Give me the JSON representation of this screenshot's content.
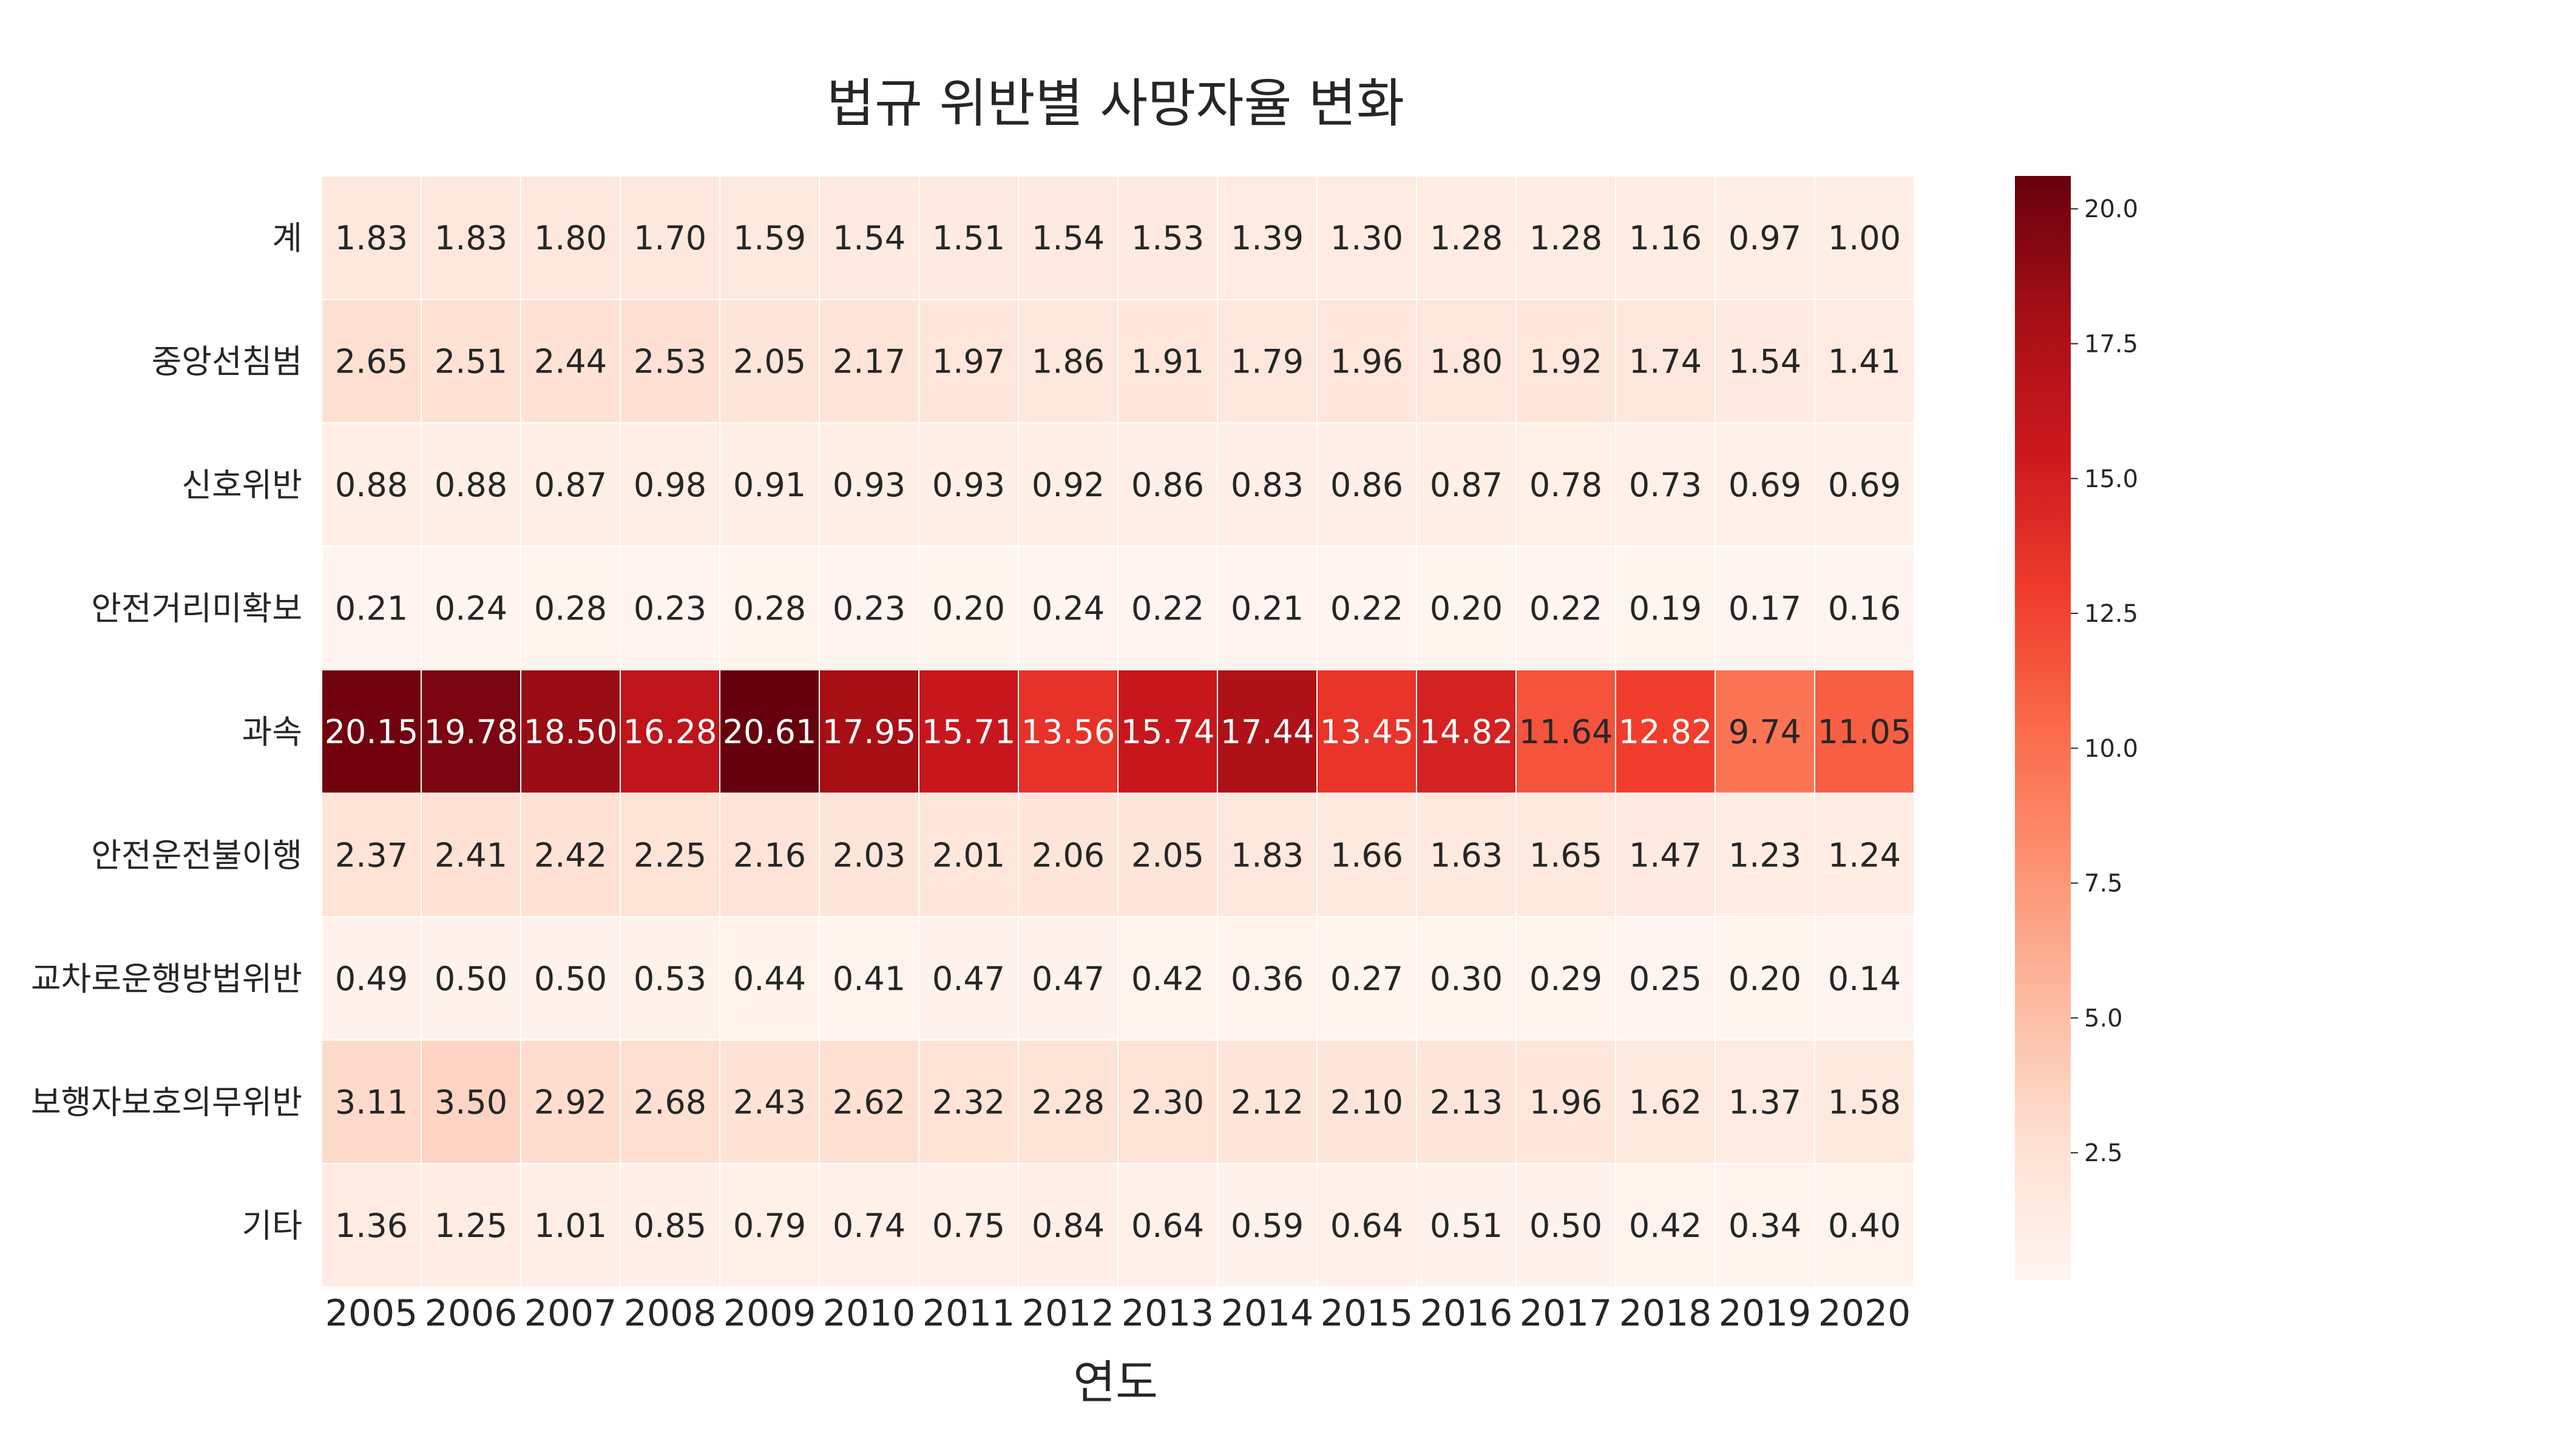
{
  "chart_data": {
    "type": "heatmap",
    "title": "법규 위반별 사망자율 변화",
    "xlabel": "연도",
    "ylabel": "",
    "columns": [
      "2005",
      "2006",
      "2007",
      "2008",
      "2009",
      "2010",
      "2011",
      "2012",
      "2013",
      "2014",
      "2015",
      "2016",
      "2017",
      "2018",
      "2019",
      "2020"
    ],
    "rows": [
      "계",
      "중앙선침범",
      "신호위반",
      "안전거리미확보",
      "과속",
      "안전운전불이행",
      "교차로운행방법위반",
      "보행자보호의무위반",
      "기타"
    ],
    "values": [
      [
        1.83,
        1.83,
        1.8,
        1.7,
        1.59,
        1.54,
        1.51,
        1.54,
        1.53,
        1.39,
        1.3,
        1.28,
        1.28,
        1.16,
        0.97,
        1.0
      ],
      [
        2.65,
        2.51,
        2.44,
        2.53,
        2.05,
        2.17,
        1.97,
        1.86,
        1.91,
        1.79,
        1.96,
        1.8,
        1.92,
        1.74,
        1.54,
        1.41
      ],
      [
        0.88,
        0.88,
        0.87,
        0.98,
        0.91,
        0.93,
        0.93,
        0.92,
        0.86,
        0.83,
        0.86,
        0.87,
        0.78,
        0.73,
        0.69,
        0.69
      ],
      [
        0.21,
        0.24,
        0.28,
        0.23,
        0.28,
        0.23,
        0.2,
        0.24,
        0.22,
        0.21,
        0.22,
        0.2,
        0.22,
        0.19,
        0.17,
        0.16
      ],
      [
        20.15,
        19.78,
        18.5,
        16.28,
        20.61,
        17.95,
        15.71,
        13.56,
        15.74,
        17.44,
        13.45,
        14.82,
        11.64,
        12.82,
        9.74,
        11.05
      ],
      [
        2.37,
        2.41,
        2.42,
        2.25,
        2.16,
        2.03,
        2.01,
        2.06,
        2.05,
        1.83,
        1.66,
        1.63,
        1.65,
        1.47,
        1.23,
        1.24
      ],
      [
        0.49,
        0.5,
        0.5,
        0.53,
        0.44,
        0.41,
        0.47,
        0.47,
        0.42,
        0.36,
        0.27,
        0.3,
        0.29,
        0.25,
        0.2,
        0.14
      ],
      [
        3.11,
        3.5,
        2.92,
        2.68,
        2.43,
        2.62,
        2.32,
        2.28,
        2.3,
        2.12,
        2.1,
        2.13,
        1.96,
        1.62,
        1.37,
        1.58
      ],
      [
        1.36,
        1.25,
        1.01,
        0.85,
        0.79,
        0.74,
        0.75,
        0.84,
        0.64,
        0.59,
        0.64,
        0.51,
        0.5,
        0.42,
        0.34,
        0.4
      ]
    ],
    "value_format": "2 decimals",
    "colormap": "Reds",
    "colormap_stops": [
      "#fff5f0",
      "#fee0d2",
      "#fcbba1",
      "#fc9272",
      "#fb6a4a",
      "#ef3b2c",
      "#cb181d",
      "#a50f15",
      "#67000d"
    ],
    "colorbar": {
      "min": 0.14,
      "max": 20.61,
      "ticks": [
        "2.5",
        "5.0",
        "7.5",
        "10.0",
        "12.5",
        "15.0",
        "17.5",
        "20.0"
      ]
    },
    "cell_border_color": "#ffffff",
    "dark_text_color": "#262626",
    "light_text_color": "#ffffff"
  }
}
